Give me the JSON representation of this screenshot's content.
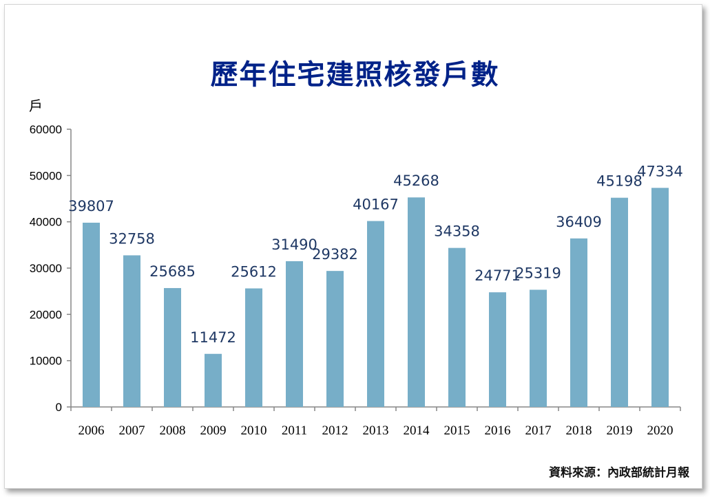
{
  "title": "歷年住宅建照核發戶數",
  "unit_label": "戶",
  "source_note": "資料來源：內政部統計月報",
  "colors": {
    "bar": "#77aec8",
    "data_label": "#1f3864",
    "title": "#002288"
  },
  "chart_data": {
    "type": "bar",
    "title": "歷年住宅建照核發戶數",
    "ylabel": "戶",
    "xlabel": "",
    "ylim": [
      0,
      60000
    ],
    "yticks": [
      0,
      10000,
      20000,
      30000,
      40000,
      50000,
      60000
    ],
    "grid": false,
    "legend": "none",
    "categories": [
      "2006",
      "2007",
      "2008",
      "2009",
      "2010",
      "2011",
      "2012",
      "2013",
      "2014",
      "2015",
      "2016",
      "2017",
      "2018",
      "2019",
      "2020"
    ],
    "values": [
      39807,
      32758,
      25685,
      11472,
      25612,
      31490,
      29382,
      40167,
      45268,
      34358,
      24771,
      25319,
      36409,
      45198,
      47334
    ]
  }
}
